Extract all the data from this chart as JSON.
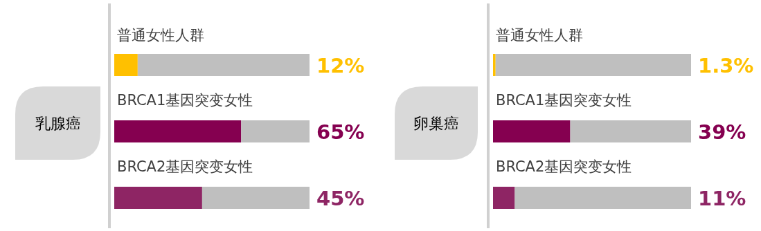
{
  "chart_data": [
    {
      "type": "bar",
      "orientation": "horizontal",
      "stacked": true,
      "title": "乳腺癌",
      "categories": [
        "普通女性人群",
        "BRCA1基因突变女性",
        "BRCA2基因突变女性"
      ],
      "xlim": [
        0,
        100
      ],
      "tick_labels": false,
      "series": [
        {
          "colors": [
            "#ffc000",
            "#850050",
            "#8e2564"
          ],
          "values": [
            12,
            65,
            45
          ],
          "value_labels": [
            "12%",
            "65%",
            "45%"
          ]
        },
        {
          "color": "#bfbfbf",
          "values": [
            88,
            35,
            55
          ]
        }
      ]
    },
    {
      "type": "bar",
      "orientation": "horizontal",
      "stacked": true,
      "title": "卵巢癌",
      "categories": [
        "普通女性人群",
        "BRCA1基因突变女性",
        "BRCA2基因突变女性"
      ],
      "xlim": [
        0,
        100
      ],
      "tick_labels": false,
      "series": [
        {
          "colors": [
            "#ffc000",
            "#850050",
            "#8e2564"
          ],
          "values": [
            1.3,
            39,
            11
          ],
          "value_labels": [
            "1.3%",
            "39%",
            "11%"
          ]
        },
        {
          "color": "#bfbfbf",
          "values": [
            98.7,
            61,
            89
          ]
        }
      ]
    }
  ]
}
